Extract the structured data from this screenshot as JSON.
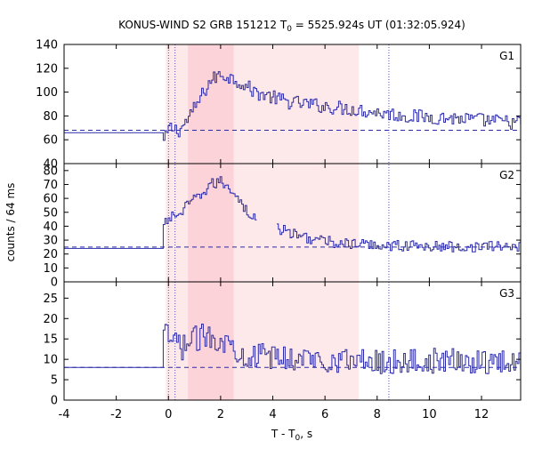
{
  "chart_data": {
    "type": "line",
    "title_prefix": "KONUS-WIND S2 GRB 151212 T",
    "title_sub": "0",
    "title_suffix": " = 5525.924s UT (01:32:05.924)",
    "xlabel_prefix": "T - T",
    "xlabel_sub": "0",
    "xlabel_suffix": ", s",
    "ylabel": "counts / 64 ms",
    "xlim": [
      -4,
      13.5
    ],
    "xticks": [
      "-4",
      "-2",
      "0",
      "2",
      "4",
      "6",
      "8",
      "10",
      "12"
    ],
    "colors": {
      "series": "#2a2aaa",
      "shade_light": "#fde8ea",
      "shade_dark": "#fbd3d8"
    },
    "shaded_intervals": [
      {
        "from": -0.1,
        "to": 7.3,
        "shade": "light"
      },
      {
        "from": 0.75,
        "to": 2.5,
        "shade": "dark"
      }
    ],
    "vertical_markers": [
      0.0,
      0.256,
      8.45
    ],
    "binsize": 0.064,
    "panels": [
      {
        "name": "G1",
        "ylim": [
          40,
          140
        ],
        "yticks": [
          40,
          60,
          80,
          100,
          120,
          140
        ],
        "background": 68,
        "pre_level": 66,
        "anchors": [
          [
            -0.2,
            58
          ],
          [
            0,
            70
          ],
          [
            0.4,
            68
          ],
          [
            0.75,
            78
          ],
          [
            1.2,
            95
          ],
          [
            1.6,
            110
          ],
          [
            2.0,
            115
          ],
          [
            2.6,
            110
          ],
          [
            3.3,
            100
          ],
          [
            4.5,
            92
          ],
          [
            6.0,
            88
          ],
          [
            7.3,
            85
          ],
          [
            9.0,
            80
          ],
          [
            11.0,
            78
          ],
          [
            13.5,
            74
          ]
        ],
        "noise": 6
      },
      {
        "name": "G2",
        "ylim": [
          0,
          85
        ],
        "yticks": [
          0,
          10,
          20,
          30,
          40,
          50,
          60,
          70,
          80
        ],
        "background": 25,
        "pre_level": 24,
        "anchors": [
          [
            -0.2,
            40
          ],
          [
            0,
            46
          ],
          [
            0.5,
            50
          ],
          [
            0.75,
            56
          ],
          [
            1.2,
            62
          ],
          [
            1.6,
            70
          ],
          [
            2.0,
            72
          ],
          [
            2.5,
            65
          ],
          [
            3.0,
            50
          ],
          [
            3.4,
            44
          ],
          [
            4.2,
            38
          ],
          [
            5.0,
            33
          ],
          [
            6.0,
            29
          ],
          [
            7.0,
            27
          ],
          [
            9.0,
            26
          ],
          [
            11.0,
            25
          ],
          [
            13.5,
            26
          ]
        ],
        "noise": 4,
        "gap": [
          3.35,
          4.1
        ]
      },
      {
        "name": "G3",
        "ylim": [
          0,
          29
        ],
        "yticks": [
          0,
          5,
          10,
          15,
          20,
          25
        ],
        "background": 8,
        "pre_level": 8,
        "anchors": [
          [
            -0.2,
            16
          ],
          [
            0,
            15
          ],
          [
            0.5,
            13
          ],
          [
            1.0,
            15
          ],
          [
            1.6,
            16
          ],
          [
            2.2,
            14
          ],
          [
            3.0,
            11
          ],
          [
            4.0,
            10.5
          ],
          [
            6.0,
            10
          ],
          [
            8.0,
            9.5
          ],
          [
            10.0,
            9.5
          ],
          [
            13.5,
            9.5
          ]
        ],
        "noise": 3.2
      }
    ]
  }
}
